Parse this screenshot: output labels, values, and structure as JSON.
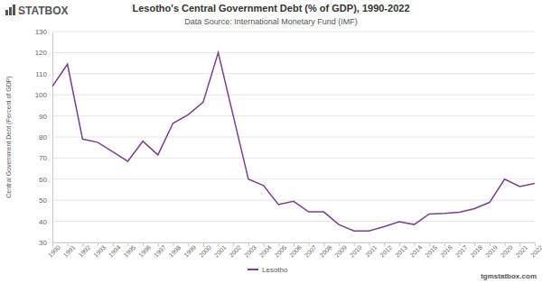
{
  "logo": "STATBOX",
  "watermark": "tgmstatbox.com",
  "chart_data": {
    "type": "line",
    "title": "Lesotho's Central Government Debt (% of GDP), 1990-2022",
    "subtitle": "Data Source: International Monetary Fund (IMF)",
    "y_label": "Central Government Debt (Percent of GDP)",
    "categories": [
      "1990",
      "1991",
      "1992",
      "1993",
      "1994",
      "1995",
      "1996",
      "1997",
      "1998",
      "1999",
      "2000",
      "2001",
      "2002",
      "2003",
      "2004",
      "2005",
      "2006",
      "2007",
      "2008",
      "2009",
      "2010",
      "2011",
      "2012",
      "2013",
      "2014",
      "2015",
      "2016",
      "2017",
      "2018",
      "2019",
      "2020",
      "2021",
      "2022"
    ],
    "series": [
      {
        "name": "Lesotho",
        "color": "#7b3f8f",
        "values": [
          104,
          114.5,
          79,
          77.5,
          73,
          68.5,
          78,
          71.5,
          86.5,
          90.5,
          96.5,
          120,
          90,
          60,
          57,
          48,
          49.5,
          44.5,
          44.5,
          38.5,
          35.5,
          35.5,
          37.5,
          39.8,
          38.5,
          43.5,
          43.8,
          44.3,
          46,
          49,
          60,
          56.5,
          58
        ]
      }
    ],
    "ylim": [
      30,
      130
    ],
    "yticks": [
      30,
      40,
      50,
      60,
      70,
      80,
      90,
      100,
      110,
      120,
      130
    ],
    "grid": true,
    "legend": "bottom"
  }
}
